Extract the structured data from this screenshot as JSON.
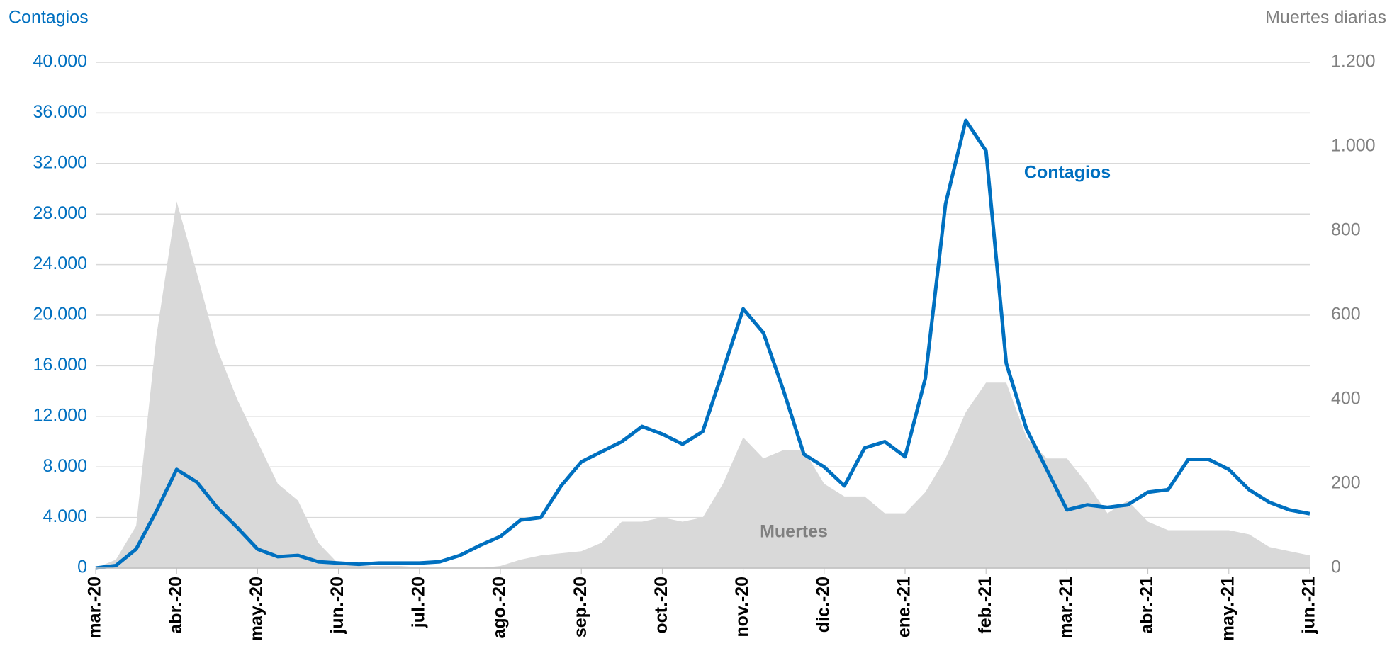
{
  "chart_data": {
    "type": "line",
    "ylabel": "Contagios",
    "y2label": "Muertes diarias",
    "categories": [
      "mar.-20",
      null,
      null,
      null,
      "abr.-20",
      null,
      null,
      null,
      "may.-20",
      null,
      null,
      null,
      "jun.-20",
      null,
      null,
      null,
      "jul.-20",
      null,
      null,
      null,
      "ago.-20",
      null,
      null,
      null,
      "sep.-20",
      null,
      null,
      null,
      "oct.-20",
      null,
      null,
      null,
      "nov.-20",
      null,
      null,
      null,
      "dic.-20",
      null,
      null,
      null,
      "ene.-21",
      null,
      null,
      null,
      "feb.-21",
      null,
      null,
      null,
      "mar.-21",
      null,
      null,
      null,
      "abr.-21",
      null,
      null,
      null,
      "may.-21",
      null,
      null,
      null,
      "jun.-21"
    ],
    "series": [
      {
        "name": "Muertes",
        "type": "area",
        "axis": "y2",
        "color": "#d9d9d9",
        "label_color": "#808080",
        "values": [
          0,
          20,
          100,
          550,
          870,
          700,
          520,
          400,
          300,
          200,
          160,
          60,
          10,
          5,
          5,
          5,
          2,
          0,
          0,
          0,
          5,
          20,
          30,
          35,
          40,
          60,
          110,
          110,
          120,
          110,
          120,
          200,
          310,
          260,
          280,
          280,
          200,
          170,
          170,
          130,
          130,
          180,
          260,
          370,
          440,
          440,
          310,
          260,
          260,
          200,
          130,
          160,
          110,
          90,
          90,
          90,
          90,
          80,
          50,
          40,
          30
        ]
      },
      {
        "name": "Contagios",
        "type": "line",
        "color": "#0070c0",
        "label_color": "#0070c0",
        "values": [
          0,
          200,
          1500,
          4500,
          7800,
          6800,
          4800,
          3200,
          1500,
          900,
          1000,
          500,
          400,
          300,
          400,
          400,
          400,
          500,
          1000,
          1800,
          2500,
          3800,
          4000,
          6500,
          8400,
          9200,
          10000,
          11200,
          10600,
          9800,
          10800,
          15600,
          20500,
          18600,
          14000,
          9000,
          8000,
          6500,
          9500,
          10000,
          8800,
          15000,
          28800,
          35400,
          33000,
          16200,
          11000,
          7800,
          4600,
          5000,
          4800,
          5000,
          6000,
          6200,
          8600,
          8600,
          7800,
          6200,
          5200,
          4600,
          4300
        ]
      }
    ],
    "ylim": [
      0,
      40000
    ],
    "yticks": [
      0,
      {
        "value": 4000,
        "label": "4.000"
      },
      {
        "value": 8000,
        "label": "8.000"
      },
      {
        "value": 12000,
        "label": "12.000"
      },
      {
        "value": 16000,
        "label": "16.000"
      },
      {
        "value": 20000,
        "label": "20.000"
      },
      {
        "value": 24000,
        "label": "24.000"
      },
      {
        "value": 28000,
        "label": "28.000"
      },
      {
        "value": 32000,
        "label": "32.000"
      },
      {
        "value": 36000,
        "label": "36.000"
      },
      {
        "value": 40000,
        "label": "40.000"
      }
    ],
    "y2lim": [
      0,
      1200
    ],
    "y2ticks": [
      0,
      200,
      400,
      600,
      800,
      {
        "value": 1000,
        "label": "1.000"
      },
      {
        "value": 1200,
        "label": "1.200"
      }
    ],
    "grid": true
  }
}
